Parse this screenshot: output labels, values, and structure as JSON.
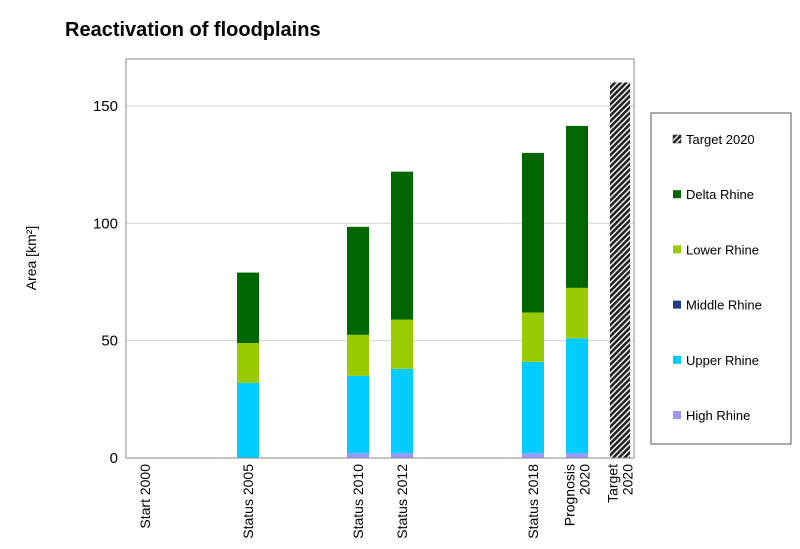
{
  "chart_data": {
    "type": "bar",
    "stacked": true,
    "title": "Reactivation of floodplains",
    "ylabel": "Area [km²]",
    "xlabel": "",
    "ylim": [
      0,
      170
    ],
    "yticks": [
      0,
      50,
      100,
      150
    ],
    "grid": true,
    "legend_position": "right",
    "categories": [
      "Start 2000",
      "Status 2005",
      "Status 2010",
      "Status 2012",
      "Status 2018",
      "Prognosis 2020",
      "Target 2020"
    ],
    "series": [
      {
        "name": "High Rhine",
        "color": "#9999ff",
        "values": [
          0,
          0,
          2,
          2,
          2,
          2,
          0
        ]
      },
      {
        "name": "Upper Rhine",
        "color": "#00ccff",
        "values": [
          0,
          32,
          33,
          36,
          39,
          49,
          0
        ]
      },
      {
        "name": "Middle Rhine",
        "color": "#1f3c88",
        "values": [
          0,
          0,
          0,
          0,
          0,
          0,
          0
        ]
      },
      {
        "name": "Lower Rhine",
        "color": "#99cc00",
        "values": [
          0,
          17,
          17.5,
          21,
          21,
          21.5,
          0
        ]
      },
      {
        "name": "Delta Rhine",
        "color": "#006600",
        "values": [
          0,
          30,
          46,
          63,
          68,
          69,
          0
        ]
      },
      {
        "name": "Target 2020",
        "color": "#333333",
        "pattern": "hatched",
        "values": [
          0,
          0,
          0,
          0,
          0,
          0,
          160
        ]
      }
    ],
    "legend_order": [
      "Target 2020",
      "Delta Rhine",
      "Lower Rhine",
      "Middle Rhine",
      "Upper Rhine",
      "High Rhine"
    ]
  }
}
